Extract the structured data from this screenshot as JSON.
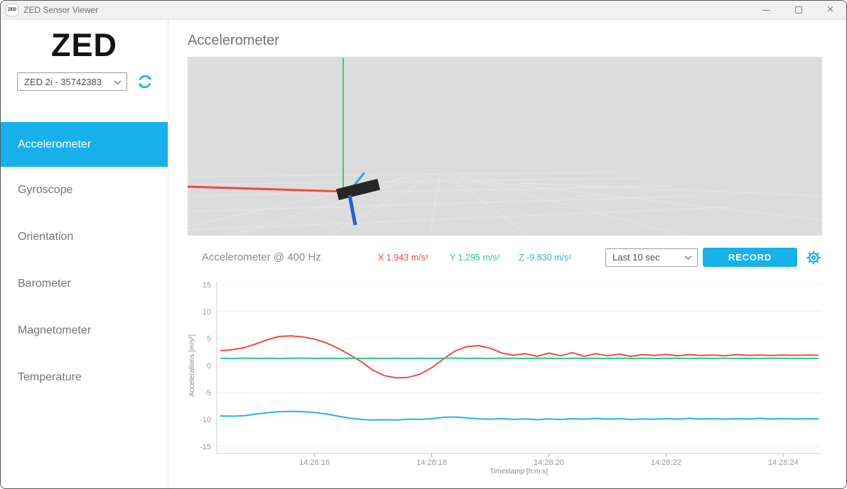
{
  "window": {
    "title": "ZED Sensor Viewer",
    "icon_text": "ZED"
  },
  "sidebar": {
    "logo": "ZED",
    "device_select": {
      "value": "ZED 2i - 35742383"
    },
    "items": [
      {
        "label": "Accelerometer",
        "active": true
      },
      {
        "label": "Gyroscope",
        "active": false
      },
      {
        "label": "Orientation",
        "active": false
      },
      {
        "label": "Barometer",
        "active": false
      },
      {
        "label": "Magnetometer",
        "active": false
      },
      {
        "label": "Temperature",
        "active": false
      }
    ]
  },
  "main": {
    "page_title": "Accelerometer",
    "stats": {
      "title": "Accelerometer @  400 Hz",
      "x": "X 1.943 m/s²",
      "y": "Y 1.295 m/s²",
      "z": "Z -9.830 m/s²"
    },
    "range_select": {
      "value": "Last 10 sec"
    },
    "record_label": "RECORD"
  },
  "colors": {
    "accent": "#16b1ea",
    "series_x": "#ef4b44",
    "series_y": "#2fc98a",
    "series_z": "#29b2e8",
    "axis3d_x": "#f04b41",
    "axis3d_y": "#2fd06e",
    "axis3d_z": "#2263cc",
    "axis3d_aux": "#29a8e0",
    "viewport_bg": "#dcdcdc",
    "camera_body": "#262626"
  },
  "chart_data": {
    "type": "line",
    "title": "Accelerometer @ 400 Hz",
    "xlabel": "Timestamp [h:m:s]",
    "ylabel": "Accelerations [m/s²]",
    "ylim": [
      -15,
      15
    ],
    "yticks": [
      15,
      10,
      5,
      0,
      -5,
      -10,
      -15
    ],
    "grid": "dotted horizontal",
    "legend": "none",
    "x_unit": "seconds after 14:28:00",
    "xlim": [
      14.33,
      24.64
    ],
    "xticks": [
      {
        "t": 16,
        "label": "14:28:16"
      },
      {
        "t": 18,
        "label": "14:28:18"
      },
      {
        "t": 20,
        "label": "14:28:20"
      },
      {
        "t": 22,
        "label": "14:28:22"
      },
      {
        "t": 24,
        "label": "14:28:24"
      }
    ],
    "x": [
      14.4,
      14.6,
      14.8,
      15,
      15.2,
      15.4,
      15.6,
      15.8,
      16,
      16.2,
      16.4,
      16.6,
      16.8,
      17,
      17.2,
      17.4,
      17.6,
      17.8,
      18,
      18.2,
      18.4,
      18.6,
      18.8,
      19,
      19.2,
      19.4,
      19.6,
      19.8,
      20,
      20.2,
      20.4,
      20.6,
      20.8,
      21,
      21.2,
      21.4,
      21.6,
      21.8,
      22,
      22.2,
      22.4,
      22.6,
      22.8,
      23,
      23.2,
      23.4,
      23.6,
      23.8,
      24,
      24.2,
      24.4,
      24.6
    ],
    "series": [
      {
        "name": "X",
        "color": "#ef4b44",
        "values": [
          2.75,
          2.95,
          3.3,
          4.0,
          4.8,
          5.4,
          5.5,
          5.3,
          4.9,
          4.2,
          3.2,
          2.0,
          0.7,
          -0.9,
          -1.9,
          -2.3,
          -2.2,
          -1.6,
          -0.4,
          1.2,
          2.7,
          3.5,
          3.7,
          3.2,
          2.3,
          1.9,
          2.2,
          1.7,
          2.3,
          1.8,
          2.4,
          1.7,
          2.2,
          1.8,
          2.1,
          1.7,
          2.0,
          1.85,
          2.05,
          1.8,
          2.0,
          1.85,
          1.95,
          1.8,
          2.0,
          1.9,
          1.95,
          1.85,
          1.95,
          1.9,
          1.95,
          1.9
        ]
      },
      {
        "name": "Y",
        "color": "#2fc98a",
        "values": [
          1.35,
          1.3,
          1.38,
          1.32,
          1.36,
          1.3,
          1.34,
          1.38,
          1.3,
          1.35,
          1.32,
          1.36,
          1.3,
          1.34,
          1.31,
          1.36,
          1.32,
          1.34,
          1.3,
          1.35,
          1.38,
          1.32,
          1.35,
          1.3,
          1.34,
          1.36,
          1.3,
          1.33,
          1.35,
          1.3,
          1.36,
          1.32,
          1.34,
          1.3,
          1.35,
          1.31,
          1.34,
          1.3,
          1.33,
          1.35,
          1.3,
          1.34,
          1.31,
          1.35,
          1.3,
          1.33,
          1.3,
          1.34,
          1.31,
          1.33,
          1.3,
          1.32
        ]
      },
      {
        "name": "Z",
        "color": "#29b2e8",
        "values": [
          -9.35,
          -9.4,
          -9.3,
          -9.0,
          -8.75,
          -8.55,
          -8.5,
          -8.55,
          -8.7,
          -9.0,
          -9.4,
          -9.75,
          -10.0,
          -10.1,
          -10.05,
          -10.1,
          -9.95,
          -10.0,
          -9.85,
          -9.6,
          -9.55,
          -9.7,
          -9.9,
          -9.95,
          -9.85,
          -10.0,
          -9.9,
          -10.05,
          -9.9,
          -10.0,
          -9.85,
          -9.95,
          -9.8,
          -9.95,
          -9.85,
          -10.0,
          -9.9,
          -9.95,
          -9.85,
          -9.95,
          -9.8,
          -9.9,
          -9.85,
          -9.95,
          -9.85,
          -9.9,
          -9.8,
          -9.9,
          -9.85,
          -9.9,
          -9.85,
          -9.9
        ]
      }
    ]
  }
}
